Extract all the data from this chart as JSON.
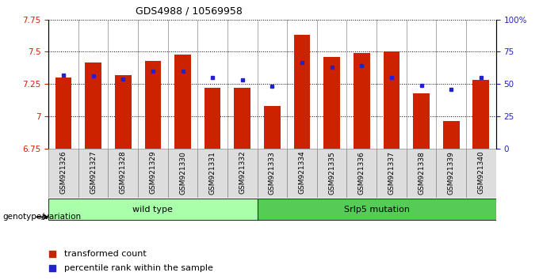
{
  "title": "GDS4988 / 10569958",
  "samples": [
    "GSM921326",
    "GSM921327",
    "GSM921328",
    "GSM921329",
    "GSM921330",
    "GSM921331",
    "GSM921332",
    "GSM921333",
    "GSM921334",
    "GSM921335",
    "GSM921336",
    "GSM921337",
    "GSM921338",
    "GSM921339",
    "GSM921340"
  ],
  "transformed_count": [
    7.3,
    7.42,
    7.32,
    7.43,
    7.48,
    7.22,
    7.22,
    7.08,
    7.63,
    7.46,
    7.49,
    7.5,
    7.18,
    6.96,
    7.28
  ],
  "percentile_rank": [
    57,
    56,
    54,
    60,
    60,
    55,
    53,
    48,
    67,
    63,
    64,
    55,
    49,
    46,
    55
  ],
  "groups": [
    {
      "label": "wild type",
      "start": 0,
      "end": 7,
      "color": "#aaffaa"
    },
    {
      "label": "Srlp5 mutation",
      "start": 7,
      "end": 15,
      "color": "#55cc55"
    }
  ],
  "ylim_left": [
    6.75,
    7.75
  ],
  "ylim_right": [
    0,
    100
  ],
  "bar_color": "#cc2200",
  "dot_color": "#2222cc",
  "yticks_left": [
    6.75,
    7.0,
    7.25,
    7.5,
    7.75
  ],
  "yticks_right": [
    0,
    25,
    50,
    75,
    100
  ],
  "yticklabels_right": [
    "0",
    "25",
    "50",
    "75",
    "100%"
  ],
  "yticklabels_left": [
    "6.75",
    "7",
    "7.25",
    "7.5",
    "7.75"
  ],
  "bar_width": 0.55,
  "fig_width": 6.8,
  "fig_height": 3.54
}
